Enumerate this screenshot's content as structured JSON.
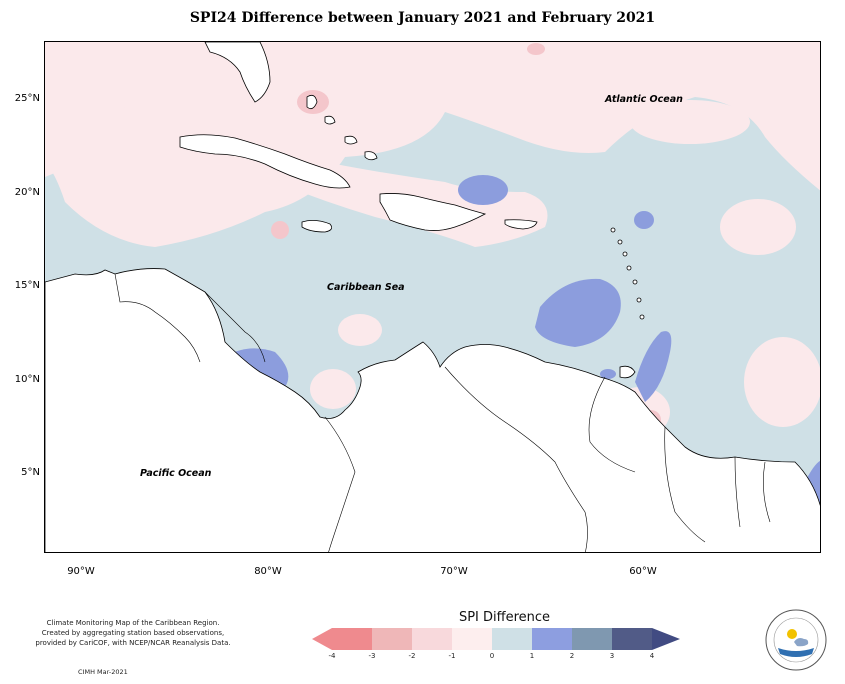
{
  "title": "SPI24 Difference between January 2021 and February 2021",
  "lat_labels": [
    "25°N",
    "20°N",
    "15°N",
    "10°N",
    "5°N"
  ],
  "lon_labels": [
    "90°W",
    "80°W",
    "70°W",
    "60°W"
  ],
  "oceans": {
    "atlantic": "Atlantic Ocean",
    "caribbean": "Caribbean Sea",
    "pacific": "Pacific Ocean"
  },
  "footer": {
    "line1": "Climate Monitoring Map of the Caribbean Region.",
    "line2": "Created by aggregating station based observations,",
    "line3": "provided by CariCOF, with NCEP/NCAR Reanalysis Data.",
    "credit": "CIMH Mar-2021"
  },
  "legend": {
    "title": "SPI Difference",
    "ticks": [
      "-4",
      "-3",
      "-2",
      "-1",
      "0",
      "1",
      "2",
      "3",
      "4"
    ],
    "colors": [
      "#ef8a8e",
      "#efb7b8",
      "#f8d9dc",
      "#fdeeee",
      "#cfe0e6",
      "#8d9ee0",
      "#7f98b0",
      "#515b87"
    ]
  },
  "colors": {
    "ocean_base": "#cfe0e6",
    "pink_light": "#fbe9eb",
    "blue_strong": "#8c9ddd",
    "pink_med": "#f4c6cb",
    "land": "#ffffff",
    "coast": "#000000"
  }
}
